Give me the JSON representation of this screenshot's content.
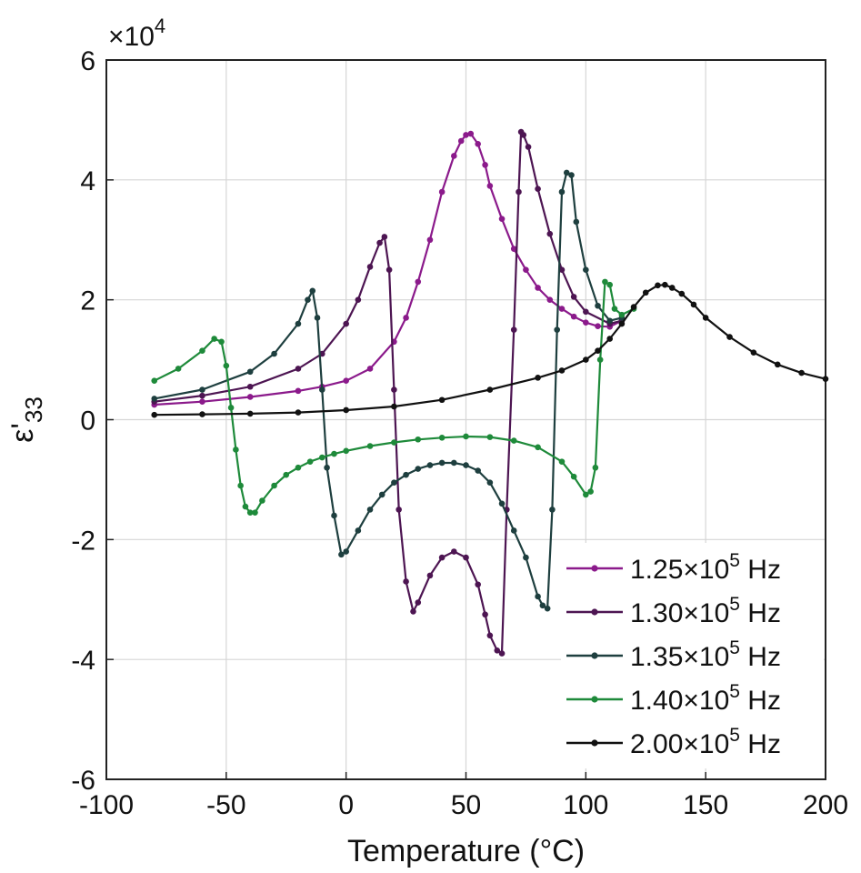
{
  "chart_data": {
    "type": "line",
    "xlabel": "Temperature (°C)",
    "ylabel": "ε'33",
    "ylabel_main": "ε'",
    "ylabel_sub": "33",
    "y_multiplier": "×10",
    "y_multiplier_exp": "4",
    "xlim": [
      -100,
      200
    ],
    "ylim": [
      -6,
      6
    ],
    "xticks": [
      -100,
      -50,
      0,
      50,
      100,
      150,
      200
    ],
    "yticks": [
      -6,
      -4,
      -2,
      0,
      2,
      4,
      6
    ],
    "xtick_labels": [
      "-100",
      "-50",
      "0",
      "50",
      "100",
      "150",
      "200"
    ],
    "ytick_labels": [
      "-6",
      "-4",
      "-2",
      "0",
      "2",
      "4",
      "6"
    ],
    "grid": true,
    "legend_position": "bottom-right",
    "series": [
      {
        "name": "1.25×10⁵ Hz",
        "legend_base": "1.25×10",
        "legend_exp": "5",
        "legend_unit": " Hz",
        "color": "#8b1a8b",
        "x": [
          -80,
          -60,
          -40,
          -20,
          -10,
          0,
          10,
          20,
          25,
          30,
          35,
          40,
          45,
          48,
          50,
          52,
          55,
          58,
          60,
          65,
          70,
          75,
          80,
          85,
          90,
          95,
          100,
          105,
          110,
          115
        ],
        "y": [
          0.25,
          0.3,
          0.38,
          0.48,
          0.55,
          0.65,
          0.85,
          1.3,
          1.7,
          2.3,
          3.0,
          3.8,
          4.4,
          4.65,
          4.75,
          4.77,
          4.6,
          4.25,
          3.9,
          3.35,
          2.85,
          2.5,
          2.2,
          2.0,
          1.85,
          1.72,
          1.62,
          1.56,
          1.55,
          1.65
        ]
      },
      {
        "name": "1.30×10⁵ Hz",
        "legend_base": "1.30×10",
        "legend_exp": "5",
        "legend_unit": " Hz",
        "color": "#4d1552",
        "x": [
          -80,
          -60,
          -40,
          -20,
          -10,
          0,
          5,
          10,
          14,
          16,
          18,
          20,
          22,
          25,
          28,
          30,
          35,
          40,
          45,
          50,
          55,
          58,
          60,
          63,
          65,
          67,
          70,
          72,
          73,
          74,
          76,
          80,
          85,
          90,
          95,
          100,
          110,
          115
        ],
        "y": [
          0.3,
          0.4,
          0.55,
          0.85,
          1.1,
          1.6,
          2.0,
          2.55,
          2.95,
          3.05,
          2.5,
          0.5,
          -1.5,
          -2.7,
          -3.2,
          -3.05,
          -2.6,
          -2.3,
          -2.2,
          -2.3,
          -2.75,
          -3.25,
          -3.6,
          -3.85,
          -3.9,
          -1.5,
          1.5,
          3.8,
          4.8,
          4.75,
          4.55,
          3.85,
          3.1,
          2.5,
          2.05,
          1.8,
          1.6,
          1.65
        ]
      },
      {
        "name": "1.35×10⁵ Hz",
        "legend_base": "1.35×10",
        "legend_exp": "5",
        "legend_unit": " Hz",
        "color": "#1e3f3f",
        "x": [
          -80,
          -60,
          -40,
          -30,
          -20,
          -16,
          -14,
          -12,
          -10,
          -8,
          -5,
          -2,
          0,
          5,
          10,
          15,
          20,
          25,
          30,
          35,
          40,
          45,
          50,
          55,
          60,
          65,
          70,
          75,
          80,
          82,
          84,
          86,
          88,
          90,
          92,
          94,
          96,
          100,
          105,
          110,
          115
        ],
        "y": [
          0.35,
          0.5,
          0.8,
          1.1,
          1.6,
          2.0,
          2.15,
          1.7,
          0.5,
          -0.8,
          -1.6,
          -2.25,
          -2.2,
          -1.85,
          -1.5,
          -1.25,
          -1.05,
          -0.92,
          -0.82,
          -0.76,
          -0.72,
          -0.72,
          -0.76,
          -0.85,
          -1.05,
          -1.4,
          -1.85,
          -2.3,
          -2.95,
          -3.1,
          -3.15,
          -1.5,
          1.5,
          3.8,
          4.12,
          4.08,
          3.3,
          2.5,
          1.9,
          1.65,
          1.7
        ]
      },
      {
        "name": "1.40×10⁵ Hz",
        "legend_base": "1.40×10",
        "legend_exp": "5",
        "legend_unit": " Hz",
        "color": "#1e8a3a",
        "x": [
          -80,
          -70,
          -60,
          -55,
          -52,
          -50,
          -48,
          -46,
          -44,
          -42,
          -40,
          -38,
          -35,
          -30,
          -25,
          -20,
          -15,
          -10,
          -5,
          0,
          10,
          20,
          30,
          40,
          50,
          60,
          70,
          80,
          90,
          95,
          100,
          102,
          104,
          106,
          108,
          110,
          112,
          115,
          120
        ],
        "y": [
          0.65,
          0.85,
          1.15,
          1.35,
          1.3,
          0.9,
          0.2,
          -0.5,
          -1.1,
          -1.45,
          -1.55,
          -1.55,
          -1.35,
          -1.1,
          -0.92,
          -0.8,
          -0.7,
          -0.63,
          -0.57,
          -0.52,
          -0.44,
          -0.38,
          -0.33,
          -0.3,
          -0.28,
          -0.29,
          -0.35,
          -0.46,
          -0.7,
          -0.95,
          -1.25,
          -1.2,
          -0.8,
          1.0,
          2.3,
          2.25,
          1.85,
          1.75,
          1.85
        ]
      },
      {
        "name": "2.00×10⁵ Hz",
        "legend_base": "2.00×10",
        "legend_exp": "5",
        "legend_unit": " Hz",
        "color": "#111111",
        "x": [
          -80,
          -60,
          -40,
          -20,
          0,
          20,
          40,
          60,
          80,
          90,
          100,
          105,
          110,
          115,
          120,
          125,
          130,
          133,
          136,
          140,
          145,
          150,
          160,
          170,
          180,
          190,
          200
        ],
        "y": [
          0.08,
          0.09,
          0.1,
          0.12,
          0.16,
          0.22,
          0.33,
          0.5,
          0.7,
          0.82,
          1.0,
          1.15,
          1.35,
          1.6,
          1.88,
          2.12,
          2.24,
          2.25,
          2.2,
          2.1,
          1.92,
          1.7,
          1.38,
          1.12,
          0.92,
          0.78,
          0.68
        ]
      }
    ]
  }
}
